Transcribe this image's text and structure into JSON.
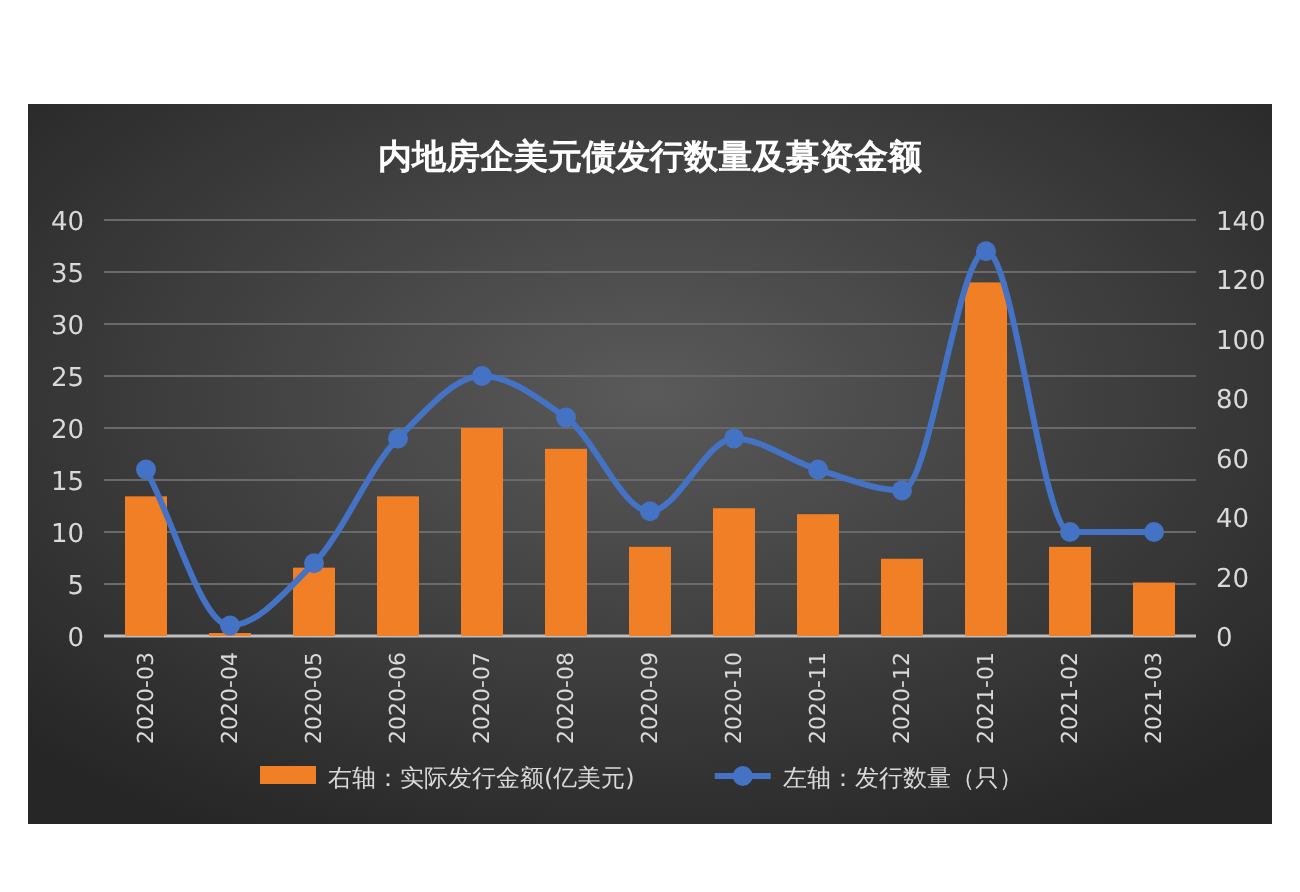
{
  "chart_data": {
    "type": "bar",
    "title": "内地房企美元债发行数量及募资金额",
    "categories": [
      "2020-03",
      "2020-04",
      "2020-05",
      "2020-06",
      "2020-07",
      "2020-08",
      "2020-09",
      "2020-10",
      "2020-11",
      "2020-12",
      "2021-01",
      "2021-02",
      "2021-03"
    ],
    "series": [
      {
        "name": "右轴：实际发行金额(亿美元)",
        "axis": "y2",
        "color": "#f07f25",
        "values": [
          47,
          1,
          23,
          47,
          70,
          63,
          30,
          43,
          41,
          26,
          119,
          30,
          18
        ]
      },
      {
        "name": "左轴：发行数量（只）",
        "type": "line",
        "color": "#4472c4",
        "values": [
          16,
          1,
          7,
          19,
          25,
          21,
          12,
          19,
          16,
          14,
          37,
          10,
          10
        ]
      }
    ],
    "ylim": [
      0,
      40
    ],
    "yticks": [
      0,
      5,
      10,
      15,
      20,
      25,
      30,
      35,
      40
    ],
    "y2lim": [
      0,
      140
    ],
    "y2ticks": [
      0,
      20,
      40,
      60,
      80,
      100,
      120,
      140
    ],
    "grid": "y",
    "legend": "bottom",
    "marker": "circle",
    "line_style": "solid"
  }
}
